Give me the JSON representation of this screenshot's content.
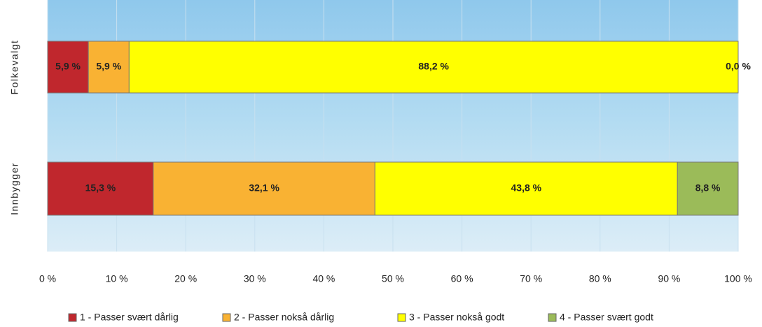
{
  "chart_data": {
    "type": "stacked_barh",
    "categories": [
      "Folkevalgt",
      "Innbygger"
    ],
    "series": [
      {
        "name": "1 - Passer svært dårlig",
        "color": "#c0272d",
        "values": [
          5.9,
          15.3
        ],
        "value_labels": [
          "5,9 %",
          "15,3 %"
        ]
      },
      {
        "name": "2 - Passer nokså dårlig",
        "color": "#f9b233",
        "values": [
          5.9,
          32.1
        ],
        "value_labels": [
          "5,9 %",
          "32,1 %"
        ]
      },
      {
        "name": "3 - Passer nokså godt",
        "color": "#ffff00",
        "values": [
          88.2,
          43.8
        ],
        "value_labels": [
          "88,2 %",
          "43,8 %"
        ]
      },
      {
        "name": "4 - Passer svært godt",
        "color": "#9bbb59",
        "values": [
          0.0,
          8.8
        ],
        "value_labels": [
          "0,0 %",
          "8,8 %"
        ]
      }
    ],
    "xlim": [
      0,
      100
    ],
    "xticks": [
      {
        "value": 0,
        "label": "0 %"
      },
      {
        "value": 10,
        "label": "10 %"
      },
      {
        "value": 20,
        "label": "20 %"
      },
      {
        "value": 30,
        "label": "30 %"
      },
      {
        "value": 40,
        "label": "40 %"
      },
      {
        "value": 50,
        "label": "50 %"
      },
      {
        "value": 60,
        "label": "60 %"
      },
      {
        "value": 70,
        "label": "70 %"
      },
      {
        "value": 80,
        "label": "80 %"
      },
      {
        "value": 90,
        "label": "90 %"
      },
      {
        "value": 100,
        "label": "100 %"
      }
    ],
    "grid": true,
    "legend": "bottom"
  }
}
